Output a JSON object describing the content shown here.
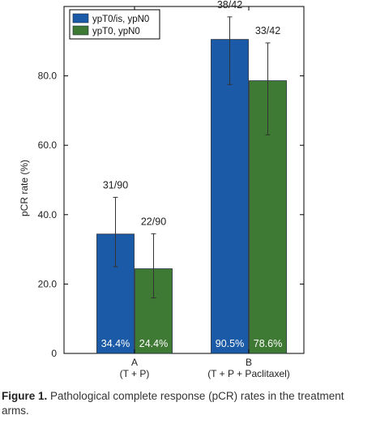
{
  "chart_data": {
    "type": "bar",
    "ylabel": "pCR rate (%)",
    "ylim": [
      0,
      100
    ],
    "yticks": [
      0,
      20.0,
      40.0,
      60.0,
      80.0
    ],
    "ytick_labels": [
      "0",
      "20.0",
      "40.0",
      "60.0",
      "80.0"
    ],
    "categories": [
      {
        "line1": "A",
        "line2": "(T + P)"
      },
      {
        "line1": "B",
        "line2": "(T + P + Paclitaxel)"
      }
    ],
    "series": [
      {
        "name": "ypT0/is, ypN0",
        "color": "#1a5aa6",
        "values": [
          34.4,
          90.5
        ],
        "error_low": [
          25,
          77.5
        ],
        "error_high": [
          45,
          97
        ],
        "value_labels": [
          "34.4%",
          "90.5%"
        ],
        "count_labels": [
          "31/90",
          "38/42"
        ]
      },
      {
        "name": "ypT0, ypN0",
        "color": "#3f7a34",
        "values": [
          24.4,
          78.6
        ],
        "error_low": [
          16,
          63
        ],
        "error_high": [
          34.5,
          89.5
        ],
        "value_labels": [
          "24.4%",
          "78.6%"
        ],
        "count_labels": [
          "22/90",
          "33/42"
        ]
      }
    ],
    "legend_position": "top-left",
    "grid": false
  },
  "caption": {
    "label": "Figure 1.",
    "text": "Pathological complete response (pCR) rates in the treatment arms."
  }
}
